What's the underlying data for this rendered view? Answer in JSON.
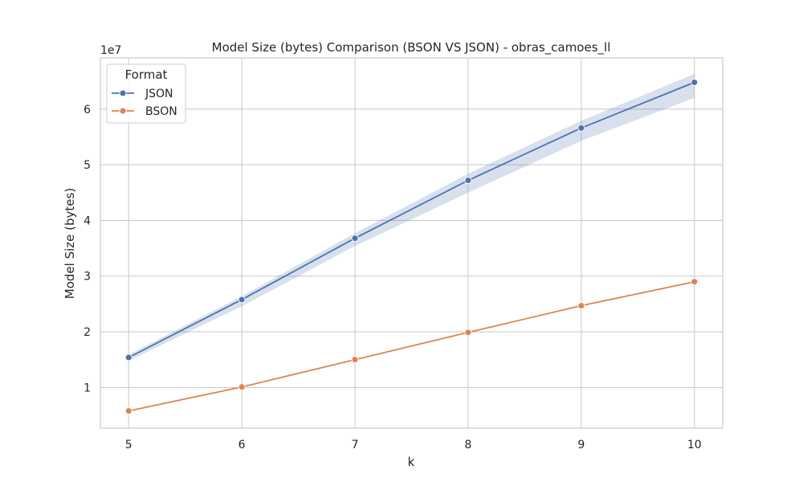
{
  "chart_data": {
    "type": "line",
    "title": "Model Size (bytes) Comparison (BSON VS JSON) - obras_camoes_ll",
    "xlabel": "k",
    "ylabel": "Model Size (bytes)",
    "y_offset_label": "1e7",
    "y_scale": 10000000,
    "x": [
      5,
      6,
      7,
      8,
      9,
      10
    ],
    "xlim": [
      4.75,
      10.25
    ],
    "ylim": [
      2700000,
      69200000
    ],
    "xticks": [
      5,
      6,
      7,
      8,
      9,
      10
    ],
    "yticks": [
      10000000,
      20000000,
      30000000,
      40000000,
      50000000,
      60000000
    ],
    "ytick_labels": [
      "1",
      "2",
      "3",
      "4",
      "5",
      "6"
    ],
    "grid": true,
    "legend": {
      "title": "Format",
      "placement": "top-left"
    },
    "series": [
      {
        "name": "JSON",
        "color": "#4c72b0",
        "values": [
          15400000,
          25800000,
          36800000,
          47200000,
          56600000,
          64800000
        ],
        "ci_lower": [
          14800000,
          24600000,
          35400000,
          45000000,
          54300000,
          62000000
        ],
        "ci_upper": [
          15900000,
          26400000,
          37700000,
          48400000,
          57900000,
          66300000
        ]
      },
      {
        "name": "BSON",
        "color": "#dd8452",
        "values": [
          5800000,
          10100000,
          15000000,
          19900000,
          24700000,
          29000000
        ]
      }
    ]
  }
}
